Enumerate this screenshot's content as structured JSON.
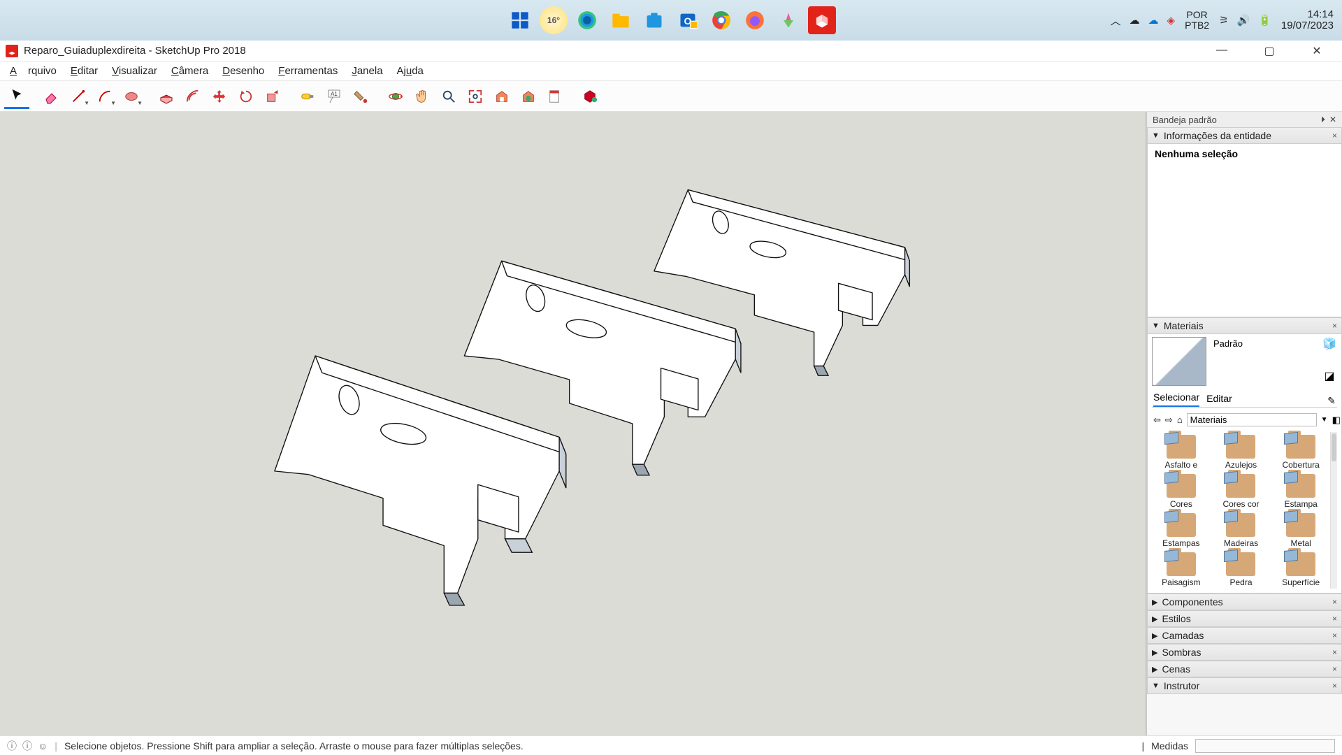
{
  "taskbar": {
    "weather_temp": "16°",
    "lang_top": "POR",
    "lang_bottom": "PTB2",
    "time": "14:14",
    "date": "19/07/2023"
  },
  "window": {
    "title": "Reparo_Guiaduplexdireita - SketchUp Pro 2018"
  },
  "menu": {
    "arquivo": "Arquivo",
    "editar": "Editar",
    "visualizar": "Visualizar",
    "camera": "Câmera",
    "desenho": "Desenho",
    "ferramentas": "Ferramentas",
    "janela": "Janela",
    "ajuda": "Ajuda"
  },
  "tray": {
    "title": "Bandeja padrão",
    "entity_info": "Informações da entidade",
    "no_selection": "Nenhuma seleção",
    "materials": "Materiais",
    "material_name": "Padrão",
    "tab_select": "Selecionar",
    "tab_edit": "Editar",
    "nav_label": "Materiais",
    "folders": [
      "Asfalto e",
      "Azulejos",
      "Cobertura",
      "Cores",
      "Cores cor",
      "Estampa",
      "Estampas",
      "Madeiras",
      "Metal",
      "Paisagism",
      "Pedra",
      "Superfície"
    ],
    "components": "Componentes",
    "styles": "Estilos",
    "layers": "Camadas",
    "shadows": "Sombras",
    "scenes": "Cenas",
    "instructor": "Instrutor"
  },
  "status": {
    "hint": "Selecione objetos. Pressione Shift para ampliar a seleção. Arraste o mouse para fazer múltiplas seleções.",
    "measure": "Medidas"
  }
}
